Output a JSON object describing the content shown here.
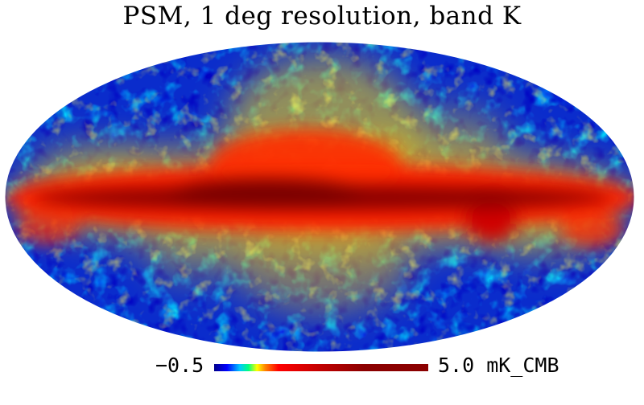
{
  "title": "PSM, 1 deg resolution, band K",
  "colorbar": {
    "min_label": "−0.5",
    "max_label": "5.0 mK_CMB",
    "min_value": -0.5,
    "max_value": 5.0,
    "unit": "mK_CMB",
    "colormap": [
      "#00008b",
      "#0000ff",
      "#00c8ff",
      "#00ff80",
      "#ffff00",
      "#ff8000",
      "#ff0000",
      "#8b0000"
    ]
  },
  "map": {
    "projection": "Mollweide",
    "background_color": "#0a2ccc",
    "galactic_plane_color": "#b00000"
  }
}
